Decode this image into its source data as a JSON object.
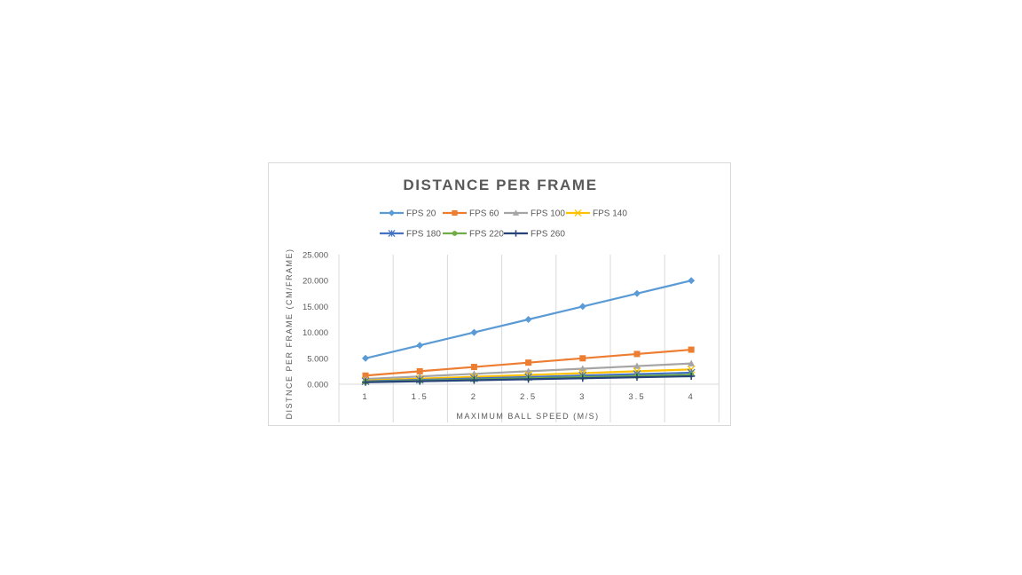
{
  "chart_data": {
    "type": "line",
    "title": "DISTANCE PER FRAME",
    "xlabel": "MAXIMUM BALL SPEED (M/S)",
    "ylabel": "DISTNCE PER FRAME (CM/FRAME)",
    "x": [
      1,
      1.5,
      2,
      2.5,
      3,
      3.5,
      4
    ],
    "x_tick_labels": [
      "1",
      "1.5",
      "2",
      "2.5",
      "3",
      "3.5",
      "4"
    ],
    "y_tick_labels": [
      "0.000",
      "5.000",
      "10.000",
      "15.000",
      "20.000",
      "25.000"
    ],
    "ylim": [
      0,
      25
    ],
    "grid": "vertical",
    "legend_position": "top",
    "series": [
      {
        "name": "FPS 20",
        "color": "#5b9bd5",
        "marker": "diamond",
        "values": [
          5.0,
          7.5,
          10.0,
          12.5,
          15.0,
          17.5,
          20.0
        ]
      },
      {
        "name": "FPS 60",
        "color": "#ed7d31",
        "marker": "square",
        "values": [
          1.667,
          2.5,
          3.333,
          4.167,
          5.0,
          5.833,
          6.667
        ]
      },
      {
        "name": "FPS 100",
        "color": "#a5a5a5",
        "marker": "triangle",
        "values": [
          1.0,
          1.5,
          2.0,
          2.5,
          3.0,
          3.5,
          4.0
        ]
      },
      {
        "name": "FPS 140",
        "color": "#ffc000",
        "marker": "x",
        "values": [
          0.714,
          1.071,
          1.429,
          1.786,
          2.143,
          2.5,
          2.857
        ]
      },
      {
        "name": "FPS 180",
        "color": "#4472c4",
        "marker": "star",
        "values": [
          0.556,
          0.833,
          1.111,
          1.389,
          1.667,
          1.944,
          2.222
        ]
      },
      {
        "name": "FPS 220",
        "color": "#70ad47",
        "marker": "circle",
        "values": [
          0.455,
          0.682,
          0.909,
          1.136,
          1.364,
          1.591,
          1.818
        ]
      },
      {
        "name": "FPS 260",
        "color": "#264478",
        "marker": "plus",
        "values": [
          0.385,
          0.577,
          0.769,
          0.962,
          1.154,
          1.346,
          1.538
        ]
      }
    ]
  }
}
